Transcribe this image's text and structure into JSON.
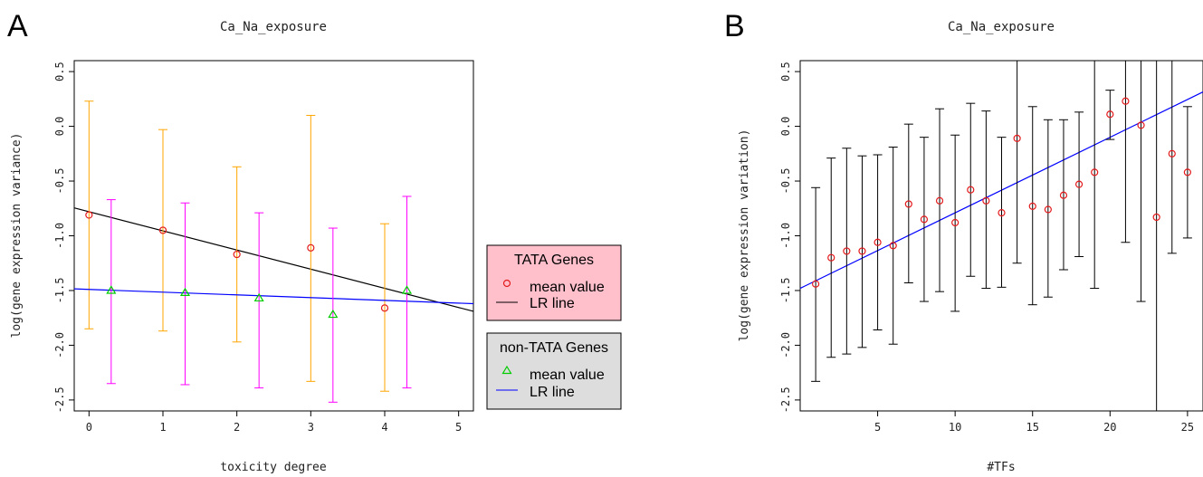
{
  "panels": [
    {
      "letter": "A",
      "title": "Ca_Na_exposure",
      "xlabel": "toxicity degree",
      "ylabel": "log(gene expression variance)"
    },
    {
      "letter": "B",
      "title": "Ca_Na_exposure",
      "xlabel": "#TFs",
      "ylabel": "log(gene expression variation)"
    }
  ],
  "legend_a": {
    "tata": {
      "title": "TATA Genes",
      "mean_label": "mean value",
      "lr_label": "LR line",
      "bg": "#ffc0cb"
    },
    "nontata": {
      "title": "non-TATA Genes",
      "mean_label": "mean value",
      "lr_label": "LR line",
      "bg": "#dddddd"
    }
  },
  "chart_data": [
    {
      "type": "scatter",
      "title": "Ca_Na_exposure",
      "xlabel": "toxicity degree",
      "ylabel": "log(gene expression variance)",
      "xlim": [
        -0.2,
        5.2
      ],
      "ylim": [
        -2.6,
        0.6
      ],
      "xticks": [
        0,
        1,
        2,
        3,
        4,
        5
      ],
      "yticks": [
        -2.5,
        -2.0,
        -1.5,
        -1.0,
        -0.5,
        0.0,
        0.5
      ],
      "grid": false,
      "legend_position": "right",
      "series": [
        {
          "name": "TATA Genes",
          "marker": "circle",
          "color": "#e41a1c",
          "errorbar_color": "#ffa500",
          "x": [
            0,
            1,
            2,
            3,
            4
          ],
          "y": [
            -0.81,
            -0.95,
            -1.17,
            -1.11,
            -1.66
          ],
          "err_low": [
            -1.85,
            -1.87,
            -1.97,
            -2.33,
            -2.42
          ],
          "err_high": [
            0.23,
            -0.03,
            -0.37,
            0.1,
            -0.89
          ],
          "lr_line": {
            "color": "#000000",
            "intercept": -0.78,
            "slope": -0.175
          }
        },
        {
          "name": "non-TATA Genes",
          "marker": "triangle",
          "color": "#00cc00",
          "errorbar_color": "#ff00ff",
          "x": [
            0.3,
            1.3,
            2.3,
            3.3,
            4.3
          ],
          "y": [
            -1.5,
            -1.52,
            -1.57,
            -1.72,
            -1.5
          ],
          "err_low": [
            -2.35,
            -2.36,
            -2.39,
            -2.52,
            -2.39
          ],
          "err_high": [
            -0.67,
            -0.7,
            -0.79,
            -0.93,
            -0.64
          ],
          "lr_line": {
            "color": "#0000ff",
            "intercept": -1.49,
            "slope": -0.025
          }
        }
      ]
    },
    {
      "type": "scatter",
      "title": "Ca_Na_exposure",
      "xlabel": "#TFs",
      "ylabel": "log(gene expression variation)",
      "xlim": [
        0.0,
        26.0
      ],
      "ylim": [
        -2.6,
        0.6
      ],
      "xticks": [
        5,
        10,
        15,
        20,
        25
      ],
      "yticks": [
        -2.5,
        -2.0,
        -1.5,
        -1.0,
        -0.5,
        0.0,
        0.5
      ],
      "grid": false,
      "series": [
        {
          "marker": "circle",
          "color": "#e41a1c",
          "errorbar_color": "#000000",
          "x": [
            1,
            2,
            3,
            4,
            5,
            6,
            7,
            8,
            9,
            10,
            11,
            12,
            13,
            14,
            15,
            16,
            17,
            18,
            19,
            20,
            21,
            22,
            23,
            24,
            25
          ],
          "y": [
            -1.44,
            -1.2,
            -1.14,
            -1.14,
            -1.06,
            -1.09,
            -0.71,
            -0.85,
            -0.68,
            -0.88,
            -0.58,
            -0.68,
            -0.79,
            -0.11,
            -0.73,
            -0.76,
            -0.63,
            -0.53,
            -0.42,
            0.11,
            0.23,
            0.01,
            -0.83,
            -0.25,
            -0.42
          ],
          "err_low": [
            -2.33,
            -2.11,
            -2.08,
            -2.02,
            -1.86,
            -1.99,
            -1.43,
            -1.6,
            -1.51,
            -1.69,
            -1.37,
            -1.48,
            -1.47,
            -1.25,
            -1.63,
            -1.56,
            -1.31,
            -1.19,
            -1.48,
            -0.12,
            -1.06,
            -1.6,
            -2.62,
            -1.16,
            -1.02
          ],
          "err_high": [
            -0.56,
            -0.29,
            -0.2,
            -0.27,
            -0.26,
            -0.19,
            0.02,
            -0.1,
            0.16,
            -0.08,
            0.21,
            0.14,
            -0.1,
            0.6,
            0.18,
            0.06,
            0.06,
            0.13,
            0.6,
            0.33,
            0.6,
            0.6,
            0.6,
            0.6,
            0.18
          ],
          "lr_line": {
            "color": "#0000ff",
            "intercept": -1.48,
            "slope": 0.069
          }
        }
      ]
    }
  ]
}
